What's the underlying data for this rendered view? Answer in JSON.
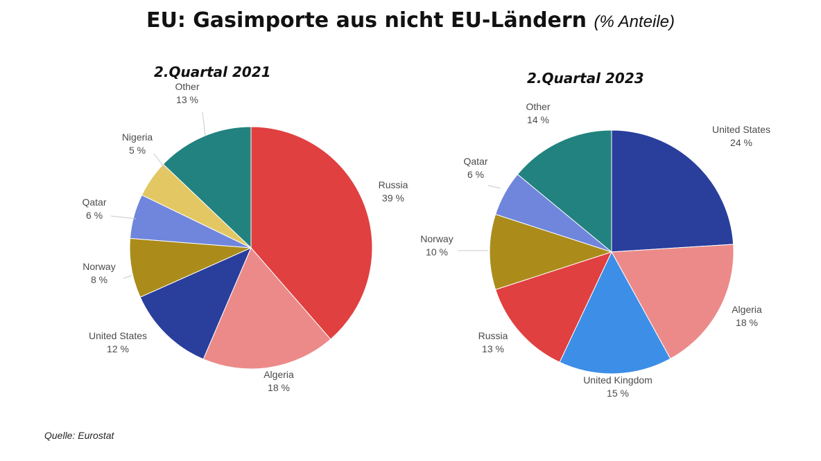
{
  "title": "EU: Gasimporte aus nicht EU-Ländern",
  "subtitle": "(% Anteile)",
  "source": "Quelle: Eurostat",
  "chart_data": [
    {
      "type": "pie",
      "title": "2.Quartal 2021",
      "slices": [
        {
          "label": "Russia",
          "value": 39,
          "display": "39 %",
          "color": "#e04040"
        },
        {
          "label": "Algeria",
          "value": 18,
          "display": "18 %",
          "color": "#ec8a8a"
        },
        {
          "label": "United States",
          "value": 12,
          "display": "12 %",
          "color": "#2a3e9c"
        },
        {
          "label": "Norway",
          "value": 8,
          "display": "8 %",
          "color": "#ab8c1b"
        },
        {
          "label": "Qatar",
          "value": 6,
          "display": "6 %",
          "color": "#6f86dc"
        },
        {
          "label": "Nigeria",
          "value": 5,
          "display": "5 %",
          "color": "#e3c762"
        },
        {
          "label": "Other",
          "value": 13,
          "display": "13 %",
          "color": "#22827f"
        }
      ]
    },
    {
      "type": "pie",
      "title": "2.Quartal 2023",
      "slices": [
        {
          "label": "United States",
          "value": 24,
          "display": "24 %",
          "color": "#2a3e9c"
        },
        {
          "label": "Algeria",
          "value": 18,
          "display": "18 %",
          "color": "#ec8a8a"
        },
        {
          "label": "United Kingdom",
          "value": 15,
          "display": "15 %",
          "color": "#3d8ee6"
        },
        {
          "label": "Russia",
          "value": 13,
          "display": "13 %",
          "color": "#e04040"
        },
        {
          "label": "Norway",
          "value": 10,
          "display": "10 %",
          "color": "#ab8c1b"
        },
        {
          "label": "Qatar",
          "value": 6,
          "display": "6 %",
          "color": "#6f86dc"
        },
        {
          "label": "Other",
          "value": 14,
          "display": "14 %",
          "color": "#22827f"
        }
      ]
    }
  ]
}
